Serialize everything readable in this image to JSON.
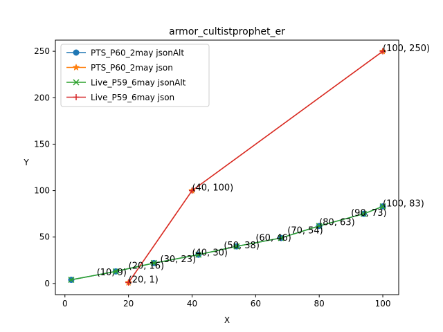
{
  "chart_data": {
    "type": "line",
    "title": "armor_cultistprophet_er",
    "xlabel": "X",
    "ylabel": "Y",
    "xlim": [
      -3,
      105
    ],
    "ylim": [
      -12,
      262
    ],
    "x_ticks": [
      0,
      20,
      40,
      60,
      80,
      100
    ],
    "y_ticks": [
      0,
      50,
      100,
      150,
      200,
      250
    ],
    "grid": false,
    "legend_position": "top-left",
    "series": [
      {
        "name": "PTS_P60_2may jsonAlt",
        "color": "#1f77b4",
        "marker": "circle",
        "x": [
          2,
          16,
          28,
          42,
          54,
          68,
          80,
          94,
          100
        ],
        "y": [
          4,
          13,
          22,
          31,
          40,
          49,
          62,
          75,
          83
        ]
      },
      {
        "name": "PTS_P60_2may json",
        "color": "#ff7f0e",
        "marker": "star",
        "x": [
          20,
          40,
          100
        ],
        "y": [
          1,
          100,
          250
        ]
      },
      {
        "name": "Live_P59_6may jsonAlt",
        "color": "#2ca02c",
        "marker": "x",
        "x": [
          2,
          16,
          28,
          42,
          54,
          68,
          80,
          94,
          100
        ],
        "y": [
          4,
          13,
          22,
          31,
          40,
          49,
          62,
          75,
          83
        ]
      },
      {
        "name": "Live_P59_6may json",
        "color": "#d62728",
        "marker": "plus",
        "x": [
          20,
          40,
          100
        ],
        "y": [
          1,
          100,
          250
        ]
      }
    ],
    "annotations": [
      {
        "text": "(10, 9)",
        "x": 10,
        "y": 9
      },
      {
        "text": "(20, 16)",
        "x": 20,
        "y": 16
      },
      {
        "text": "(20, 1)",
        "x": 20,
        "y": 1
      },
      {
        "text": "(30, 23)",
        "x": 30,
        "y": 23
      },
      {
        "text": "(40, 30)",
        "x": 40,
        "y": 30
      },
      {
        "text": "(40, 100)",
        "x": 40,
        "y": 100
      },
      {
        "text": "(50, 38)",
        "x": 50,
        "y": 38
      },
      {
        "text": "(60, 46)",
        "x": 60,
        "y": 46
      },
      {
        "text": "(70, 54)",
        "x": 70,
        "y": 54
      },
      {
        "text": "(80, 63)",
        "x": 80,
        "y": 63
      },
      {
        "text": "(90, 73)",
        "x": 90,
        "y": 73
      },
      {
        "text": "(100, 83)",
        "x": 100,
        "y": 83
      },
      {
        "text": "(100, 250)",
        "x": 100,
        "y": 250
      }
    ]
  }
}
